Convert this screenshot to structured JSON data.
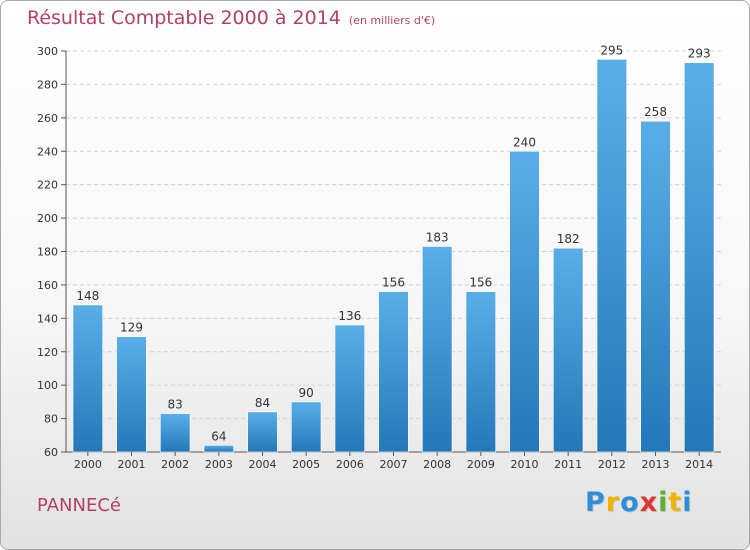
{
  "header": {
    "title": "Résultat Comptable 2000 à 2014",
    "subtitle": "(en milliers d'€)"
  },
  "footer": {
    "commune": "PANNECé",
    "logo": {
      "letters": [
        {
          "char": "P",
          "color": "#2f8fd6"
        },
        {
          "char": "r",
          "color": "#f0b400"
        },
        {
          "char": "o",
          "color": "#2f8fd6"
        },
        {
          "char": "x",
          "color": "#e0352c"
        },
        {
          "char": "i",
          "color": "#5ab02e"
        },
        {
          "char": "t",
          "color": "#f0b400"
        },
        {
          "char": "i",
          "color": "#2f8fd6"
        }
      ]
    }
  },
  "chart_data": {
    "type": "bar",
    "title": "Résultat Comptable 2000 à 2014",
    "subtitle": "(en milliers d'€)",
    "categories": [
      "2000",
      "2001",
      "2002",
      "2003",
      "2004",
      "2005",
      "2006",
      "2007",
      "2008",
      "2009",
      "2010",
      "2011",
      "2012",
      "2013",
      "2014"
    ],
    "values": [
      148,
      129,
      83,
      64,
      84,
      90,
      136,
      156,
      183,
      156,
      240,
      182,
      295,
      258,
      293
    ],
    "ylim": [
      60,
      300
    ],
    "yticks": [
      60,
      80,
      100,
      120,
      140,
      160,
      180,
      200,
      220,
      240,
      260,
      280,
      300
    ],
    "grid": true,
    "data_labels": true,
    "bar_color_top": "#5aaee8",
    "bar_color_bottom": "#2478b8"
  }
}
